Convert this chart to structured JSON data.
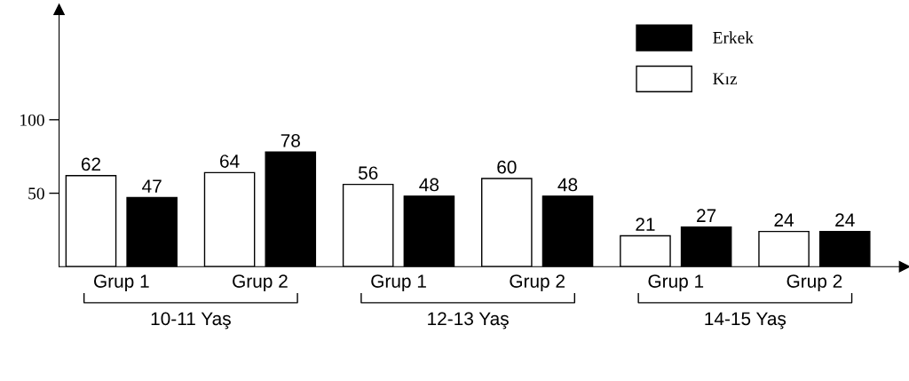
{
  "chart_data": {
    "type": "bar",
    "categories": [
      "Grup 1",
      "Grup 2",
      "Grup 1",
      "Grup 2",
      "Grup 1",
      "Grup 2"
    ],
    "series": [
      {
        "name": "Kız",
        "color": "#ffffff",
        "values": [
          62,
          64,
          56,
          60,
          21,
          24
        ]
      },
      {
        "name": "Erkek",
        "color": "#000000",
        "values": [
          47,
          78,
          48,
          48,
          27,
          24
        ]
      }
    ],
    "data_labels": true,
    "ylim": [
      0,
      175
    ],
    "yticks": [
      50,
      100
    ],
    "grid": false,
    "legend": "top right",
    "annotations": [
      "10-11 Yaş",
      "12-13 Yaş",
      "14-15 Yaş"
    ]
  }
}
